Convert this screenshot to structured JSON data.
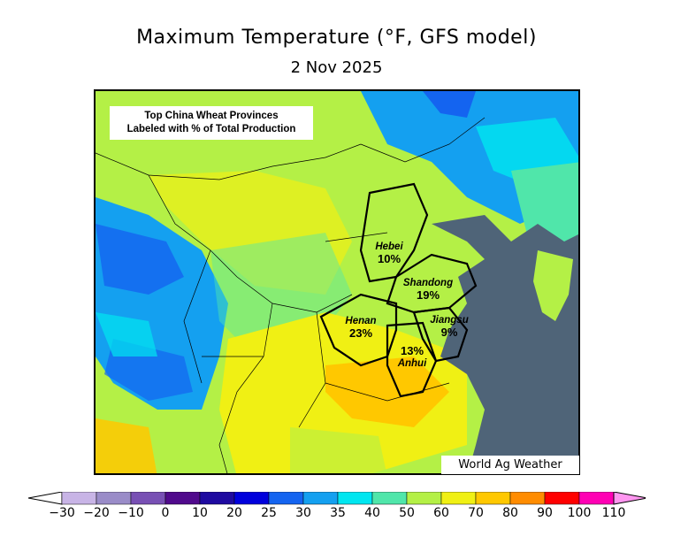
{
  "title": "Maximum Temperature (°F, GFS model)",
  "date": "2 Nov 2025",
  "info_box": {
    "line1": "Top China Wheat Provinces",
    "line2": "Labeled with % of Total Production"
  },
  "watermark": "World Ag Weather",
  "provinces": [
    {
      "name": "Hebei",
      "percent": "10%"
    },
    {
      "name": "Shandong",
      "percent": "19%"
    },
    {
      "name": "Henan",
      "percent": "23%"
    },
    {
      "name": "Jiangsu",
      "percent": "9%"
    },
    {
      "name": "Anhui",
      "percent": "13%"
    }
  ],
  "legend": {
    "ticks": [
      "−30",
      "−20",
      "−10",
      "0",
      "10",
      "20",
      "25",
      "30",
      "35",
      "40",
      "50",
      "60",
      "70",
      "80",
      "90",
      "100",
      "110"
    ],
    "colors": [
      "#c8b4e6",
      "#9a8cc8",
      "#7850b4",
      "#500a8c",
      "#1e0aa0",
      "#0000dc",
      "#1464f0",
      "#14a0f0",
      "#00e6f0",
      "#50e6aa",
      "#b4f046",
      "#f0f014",
      "#ffc800",
      "#ff8c00",
      "#ff0000",
      "#ff00b4",
      "#ff96f0"
    ]
  }
}
